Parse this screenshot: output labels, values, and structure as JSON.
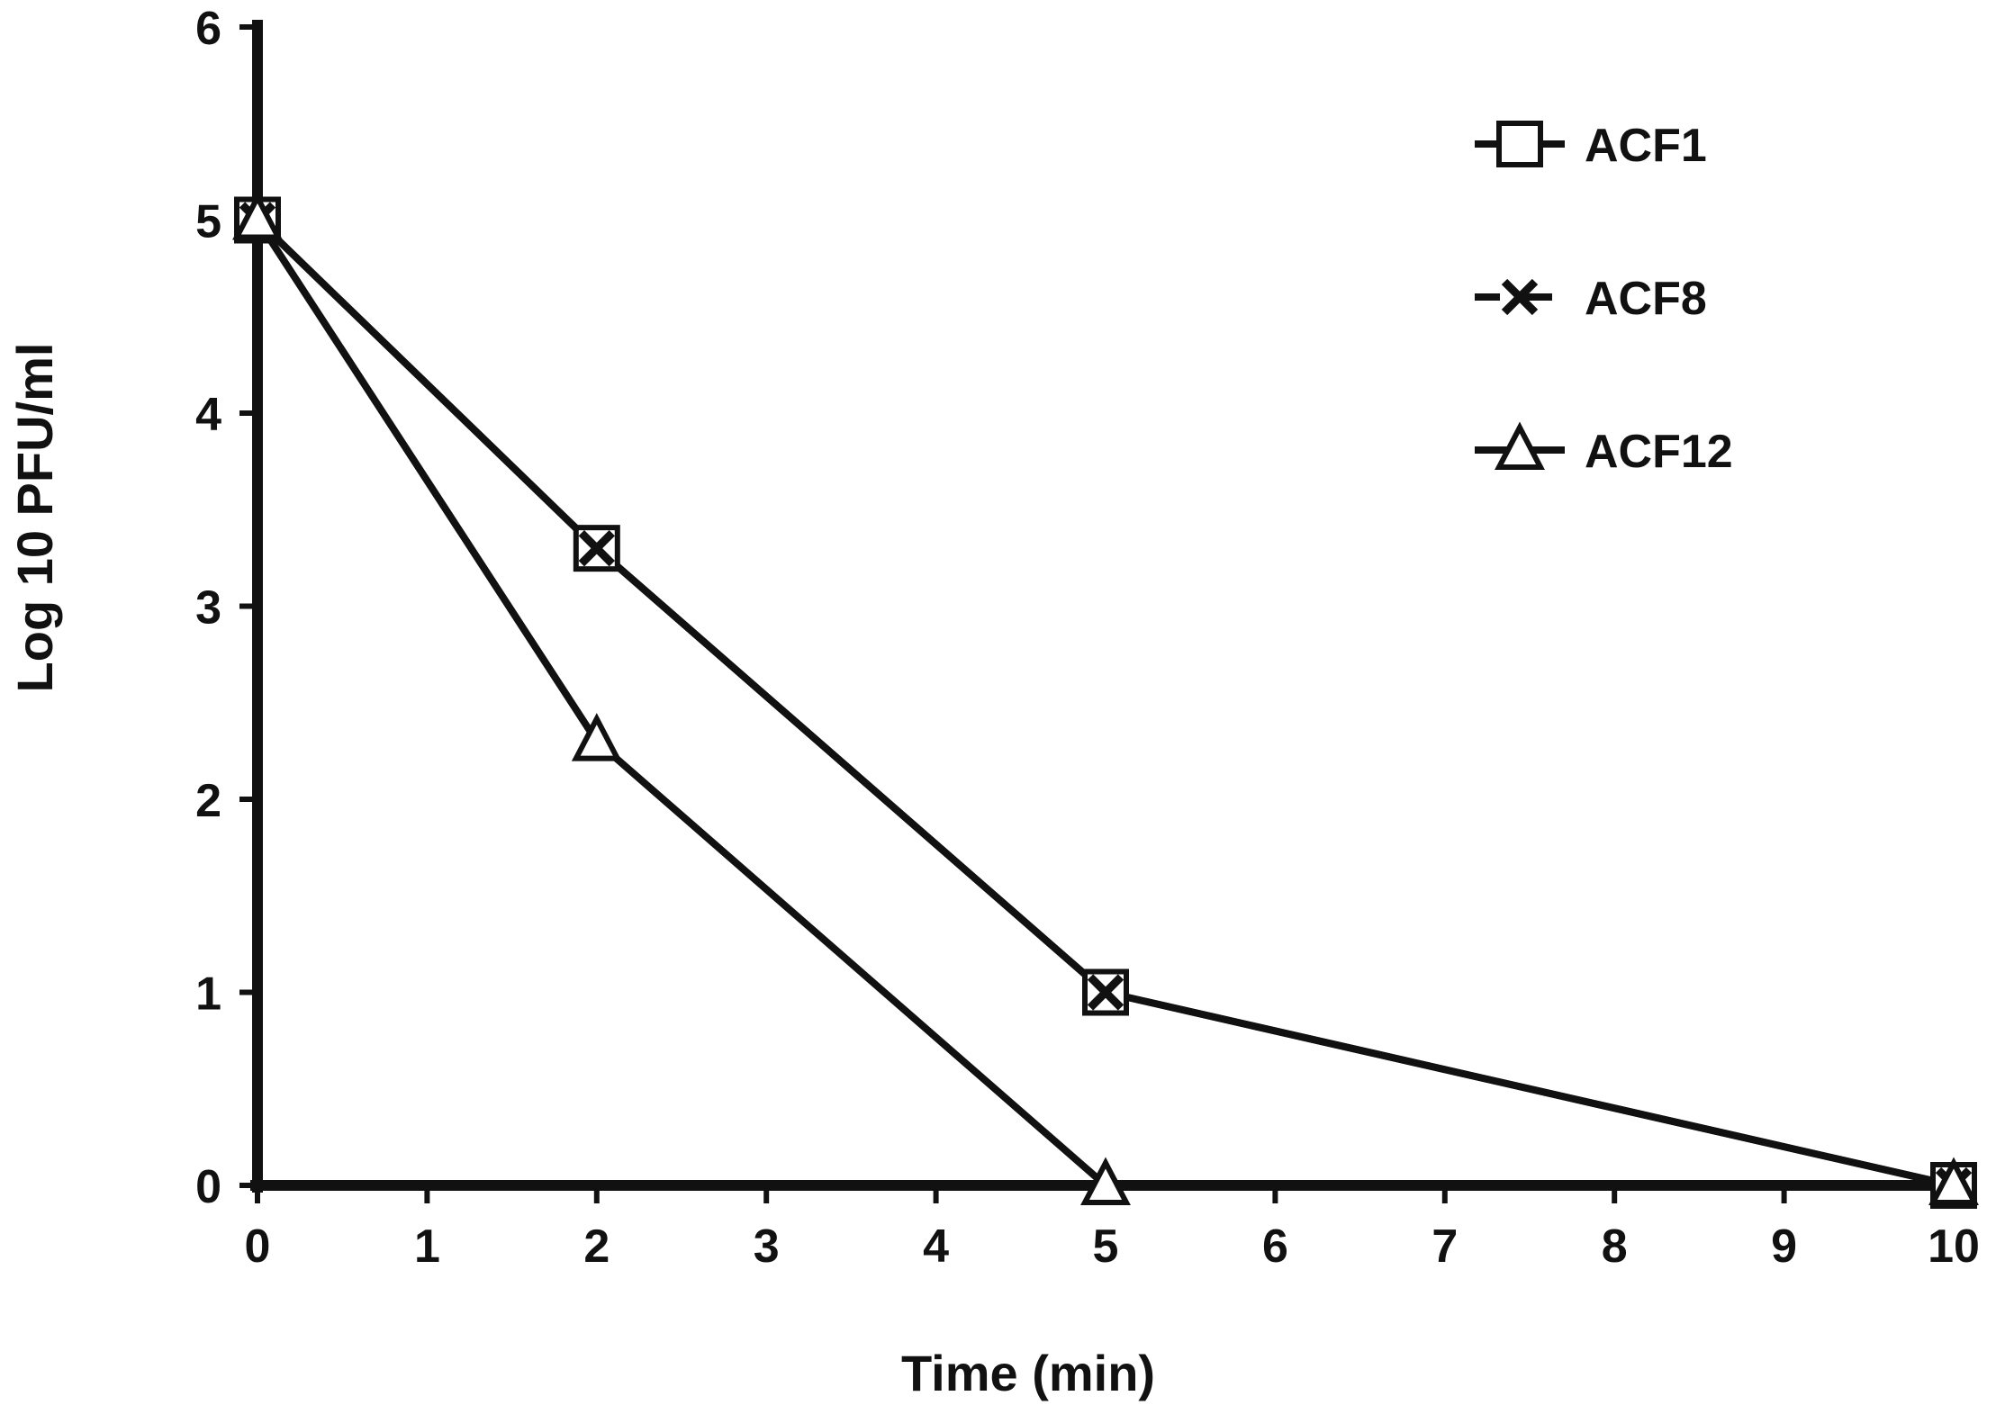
{
  "chart_data": {
    "type": "line",
    "title": "",
    "xlabel": "Time (min)",
    "ylabel": "Log 10 PFU/ml",
    "x_scale": "category",
    "x_tick_labels": [
      "0",
      "1",
      "2",
      "3",
      "4",
      "5",
      "6",
      "7",
      "8",
      "9",
      "10"
    ],
    "ylim": [
      0,
      6
    ],
    "y_ticks": [
      0,
      1,
      2,
      3,
      4,
      5,
      6
    ],
    "grid": false,
    "legend_position": "top-right",
    "series": [
      {
        "name": "ACF1",
        "marker": "square",
        "points": [
          [
            0,
            5
          ],
          [
            2,
            3.3
          ],
          [
            5,
            1
          ],
          [
            10,
            0
          ]
        ]
      },
      {
        "name": "ACF8",
        "marker": "x",
        "points": [
          [
            0,
            5
          ],
          [
            2,
            3.3
          ],
          [
            5,
            1
          ],
          [
            10,
            0
          ]
        ]
      },
      {
        "name": "ACF12",
        "marker": "triangle",
        "points": [
          [
            0,
            5
          ],
          [
            2,
            2.3
          ],
          [
            5,
            0
          ],
          [
            10,
            0
          ]
        ]
      }
    ],
    "colors": {
      "line": "#111111",
      "marker_fill": "#ffffff",
      "background": "#ffffff"
    }
  }
}
